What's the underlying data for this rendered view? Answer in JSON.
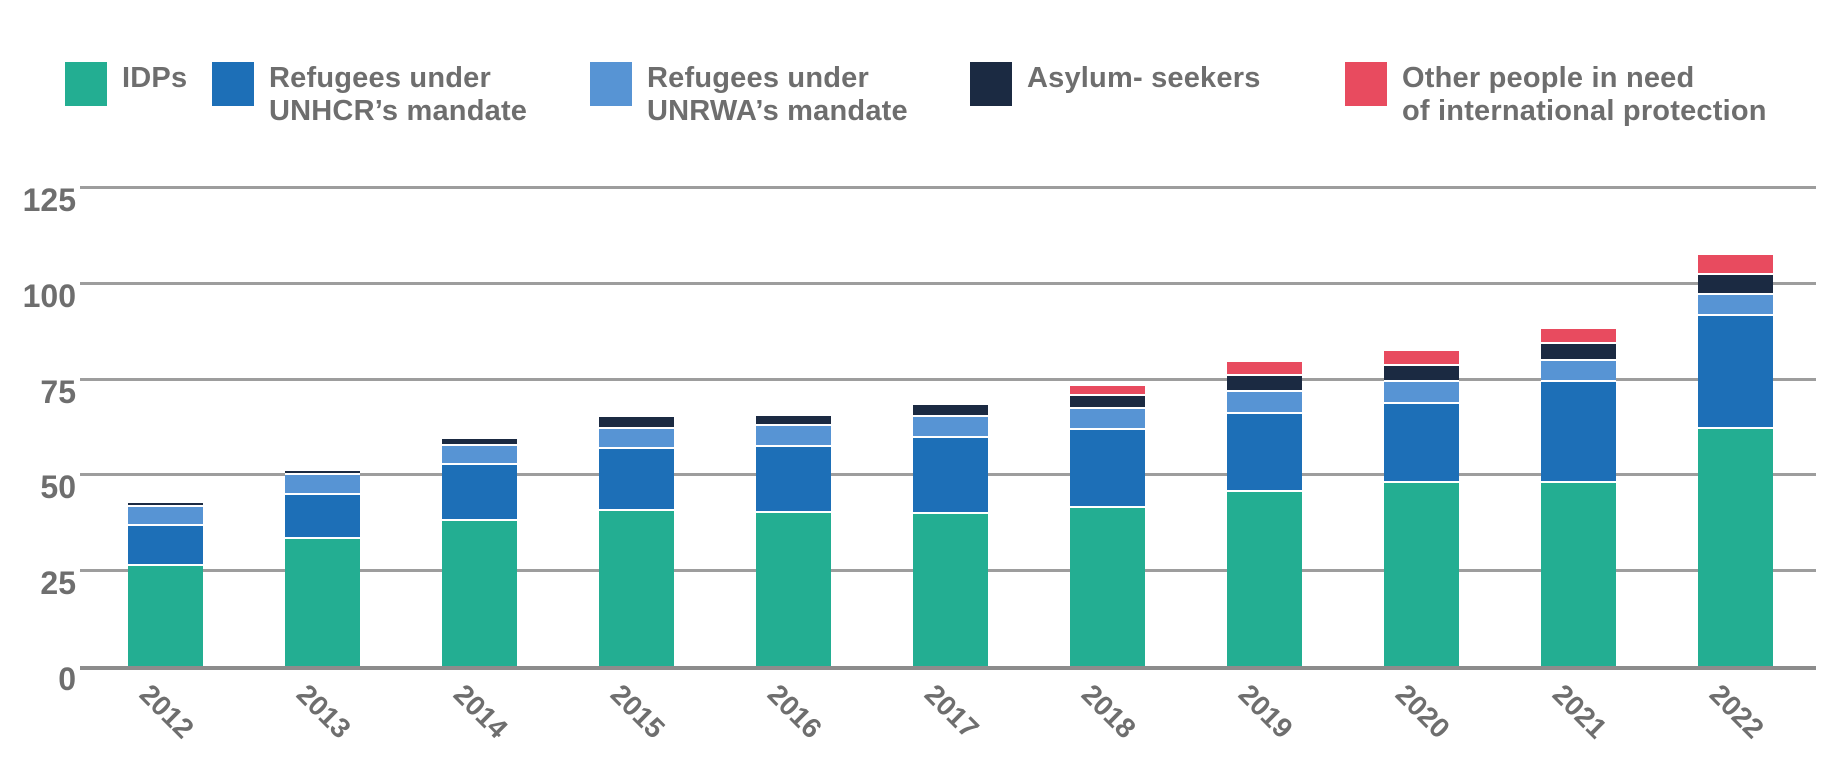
{
  "chart_data": {
    "type": "bar",
    "stacked": true,
    "title": "",
    "xlabel": "",
    "ylabel": "",
    "categories": [
      "2012",
      "2013",
      "2014",
      "2015",
      "2016",
      "2017",
      "2018",
      "2019",
      "2020",
      "2021",
      "2022"
    ],
    "series": [
      {
        "name": "IDPs",
        "color": "#23AE92",
        "values": [
          26.4,
          33.3,
          38.2,
          40.8,
          40.3,
          39.9,
          41.4,
          45.7,
          48.0,
          48.0,
          62.0
        ]
      },
      {
        "name": "Refugees under\nUNHCR’s mandate",
        "color": "#1D6FB7",
        "values": [
          10.5,
          11.7,
          14.4,
          16.1,
          17.2,
          19.9,
          20.4,
          20.4,
          20.7,
          26.5,
          29.5
        ]
      },
      {
        "name": "Refugees under\nUNRWA’s mandate",
        "color": "#5794D4",
        "values": [
          4.9,
          5.0,
          5.1,
          5.2,
          5.3,
          5.4,
          5.5,
          5.6,
          5.7,
          5.3,
          5.5
        ]
      },
      {
        "name": "Asylum- seekers",
        "color": "#1B2A42",
        "values": [
          0.9,
          1.2,
          1.8,
          3.2,
          2.8,
          3.1,
          3.5,
          4.2,
          4.1,
          4.5,
          5.2
        ]
      },
      {
        "name": "Other people in need\nof international protection",
        "color": "#E84B5F",
        "values": [
          0,
          0,
          0,
          0,
          0,
          0,
          2.5,
          3.6,
          3.9,
          4.0,
          5.4
        ]
      }
    ],
    "y_ticks": [
      0,
      25,
      50,
      75,
      100,
      125
    ],
    "ylim": [
      0,
      125
    ],
    "grid": "horizontal",
    "legend_position": "top"
  },
  "colors": {
    "background": "#FFFFFF",
    "axis_text": "#6E6E6E",
    "legend_text": "#6E6E6E",
    "gridline": "#9D9D9D",
    "baseline": "#8C8C8C",
    "segment_separator": "#FFFFFF"
  }
}
